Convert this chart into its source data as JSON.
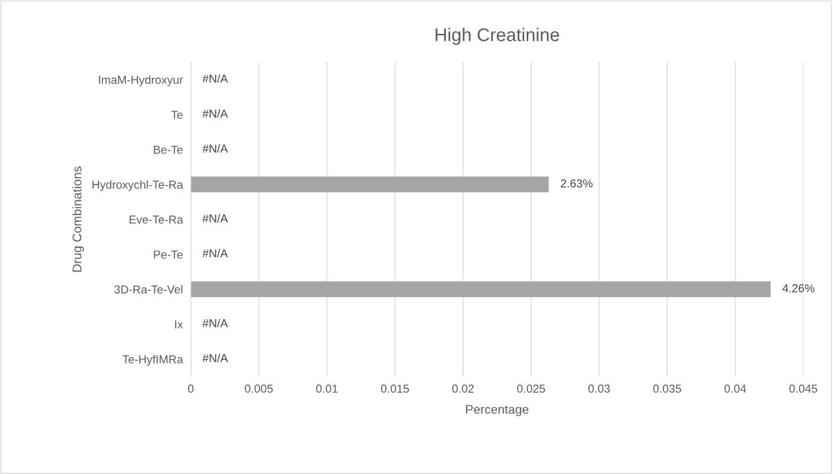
{
  "chart_data": {
    "type": "bar",
    "orientation": "horizontal",
    "title": "High Creatinine",
    "xlabel": "Percentage",
    "ylabel": "Drug Combinations",
    "categories": [
      "ImaM-Hydroxyur",
      "Te",
      "Be-Te",
      "Hydroxychl-Te-Ra",
      "Eve-Te-Ra",
      "Pe-Te",
      "3D-Ra-Te-Vel",
      "Ix",
      "Te-HyfIMRa"
    ],
    "values": [
      null,
      null,
      null,
      0.0263,
      null,
      null,
      0.0426,
      null,
      null
    ],
    "value_labels": [
      "#N/A",
      "#N/A",
      "#N/A",
      "2.63%",
      "#N/A",
      "#N/A",
      "4.26%",
      "#N/A",
      "#N/A"
    ],
    "color": "#a5a5a5",
    "xlim": [
      0,
      0.045
    ],
    "xticks": [
      0,
      0.005,
      0.01,
      0.015,
      0.02,
      0.025,
      0.03,
      0.035,
      0.04,
      0.045
    ],
    "grid": "x"
  }
}
